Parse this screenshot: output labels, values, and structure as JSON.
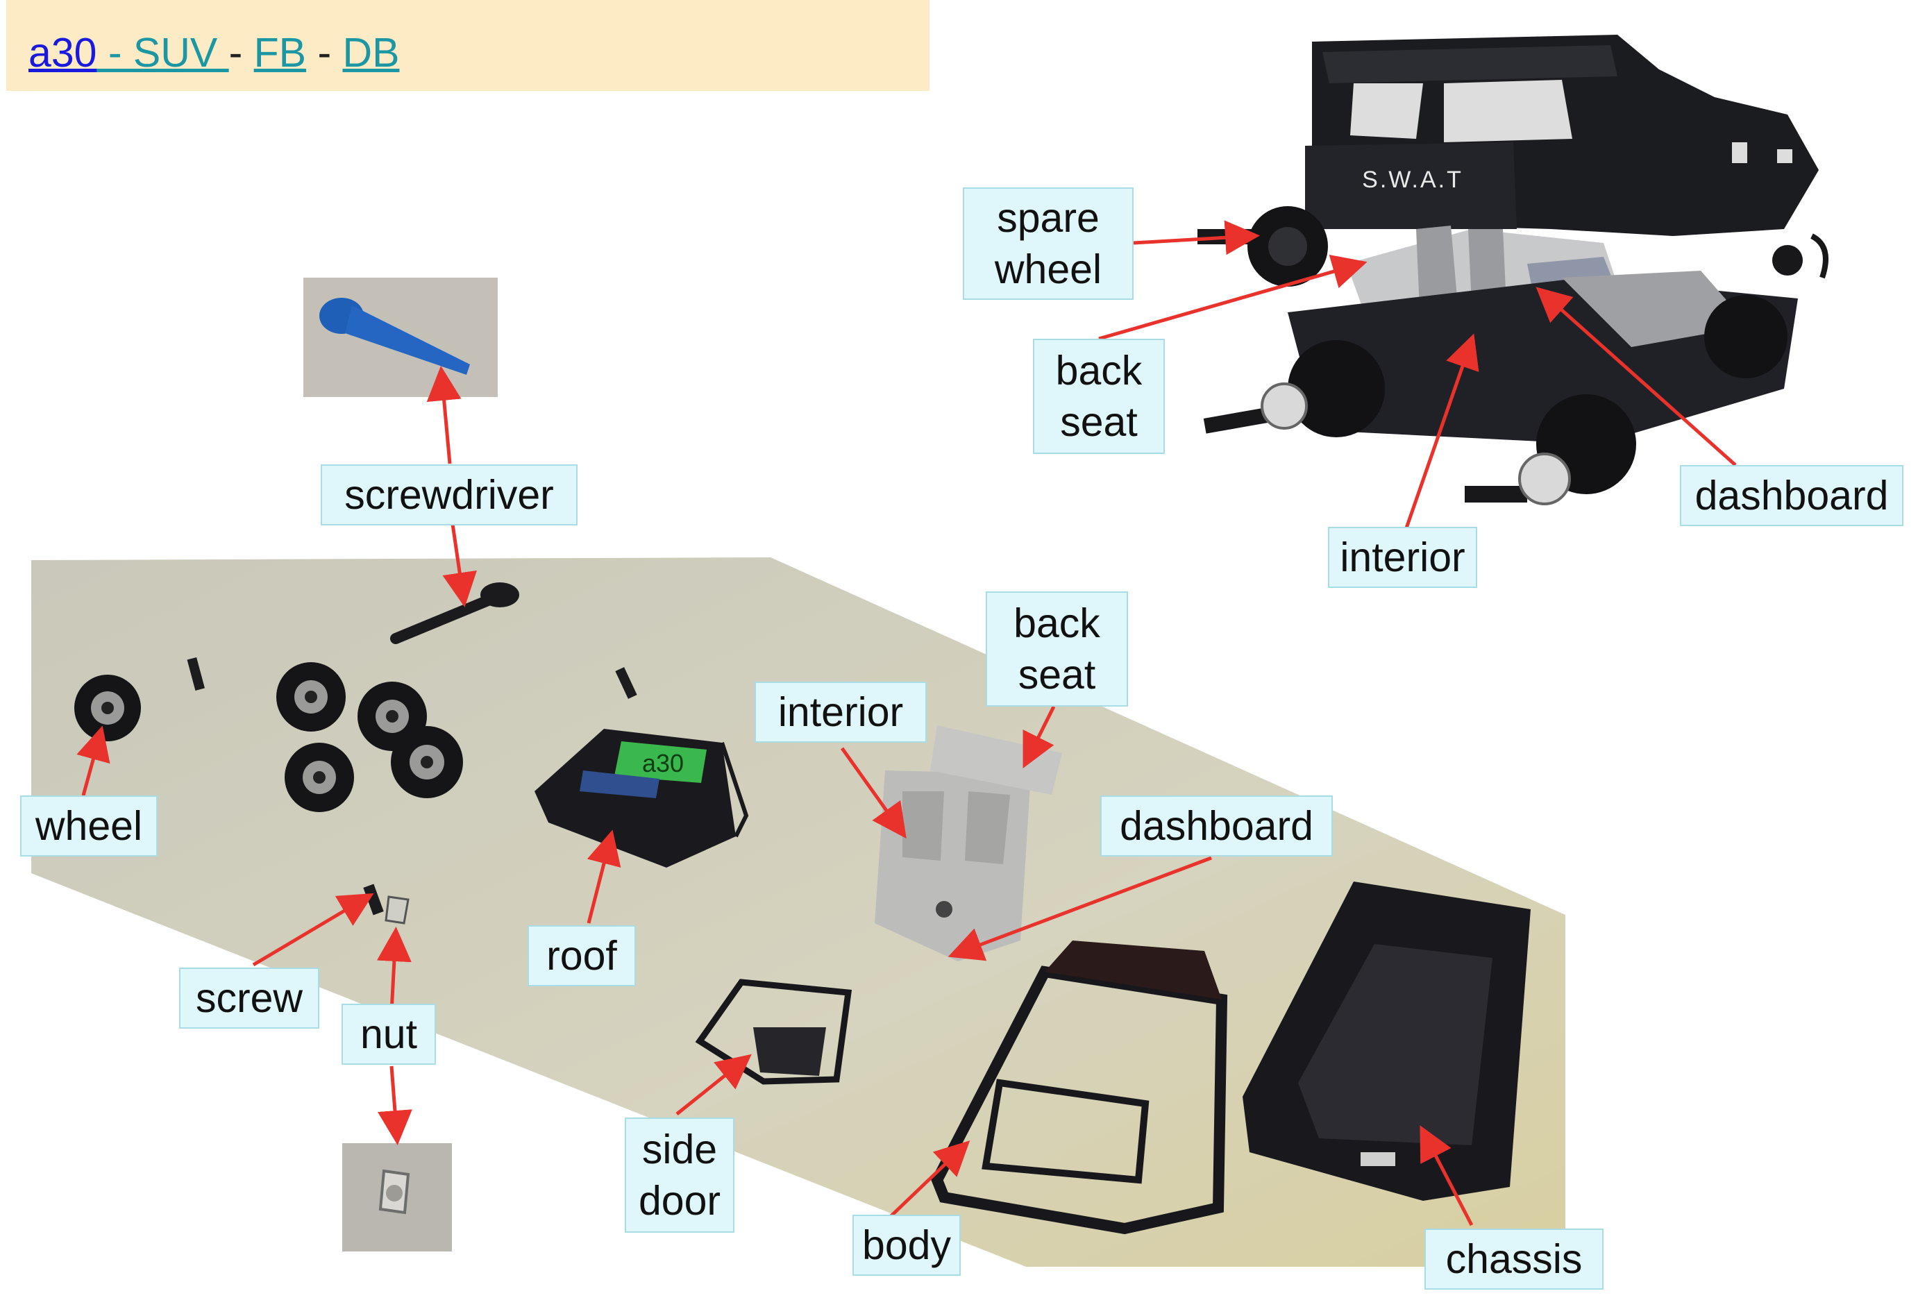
{
  "header": {
    "link_a30": "a30",
    "link_suv": " - SUV ",
    "sep1": " - ",
    "link_fb": "FB",
    "sep2": "  - ",
    "link_db": "DB"
  },
  "labels": {
    "spare_wheel": "spare\nwheel",
    "back_seat_top": "back\nseat",
    "dashboard_top": "dashboard",
    "interior_top": "interior",
    "screwdriver": "screwdriver",
    "back_seat": "back\nseat",
    "interior": "interior",
    "dashboard": "dashboard",
    "wheel": "wheel",
    "roof": "roof",
    "screw": "screw",
    "nut": "nut",
    "side_door": "side\ndoor",
    "body": "body",
    "chassis": "chassis"
  },
  "jeep_text": "S.W.A.T",
  "roof_tag": "a30",
  "colors": {
    "banner": "#fcebc4",
    "label_bg": "#dff6fb",
    "arrow": "#e8322b",
    "link_blue": "#1a1adf",
    "link_teal": "#1b96a3"
  }
}
